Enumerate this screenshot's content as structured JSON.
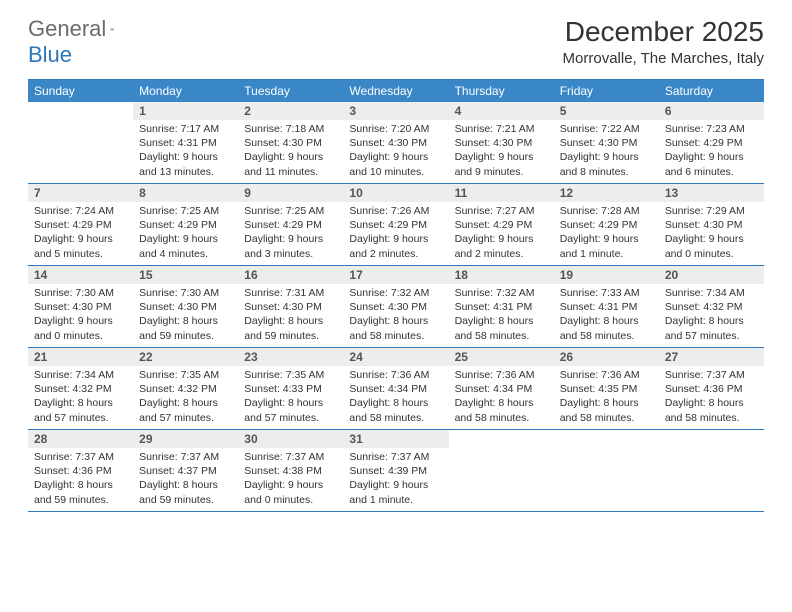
{
  "logo": {
    "general": "General",
    "blue": "Blue"
  },
  "title": "December 2025",
  "location": "Morrovalle, The Marches, Italy",
  "colors": {
    "header_bg": "#3a87c8",
    "header_text": "#ffffff",
    "daynum_bg": "#ededed",
    "daynum_text": "#555555",
    "rule": "#2e77b8",
    "logo_gray": "#6b6b6b",
    "logo_blue": "#2e77b8",
    "body_text": "#333333",
    "background": "#ffffff"
  },
  "fonts": {
    "base_family": "Arial",
    "title_size_pt": 21,
    "location_size_pt": 11,
    "dayname_size_pt": 9,
    "daynum_size_pt": 9,
    "info_size_pt": 8
  },
  "daynames": [
    "Sunday",
    "Monday",
    "Tuesday",
    "Wednesday",
    "Thursday",
    "Friday",
    "Saturday"
  ],
  "startColumn": 1,
  "days": [
    {
      "n": 1,
      "sunrise": "7:17 AM",
      "sunset": "4:31 PM",
      "daylight": "9 hours and 13 minutes."
    },
    {
      "n": 2,
      "sunrise": "7:18 AM",
      "sunset": "4:30 PM",
      "daylight": "9 hours and 11 minutes."
    },
    {
      "n": 3,
      "sunrise": "7:20 AM",
      "sunset": "4:30 PM",
      "daylight": "9 hours and 10 minutes."
    },
    {
      "n": 4,
      "sunrise": "7:21 AM",
      "sunset": "4:30 PM",
      "daylight": "9 hours and 9 minutes."
    },
    {
      "n": 5,
      "sunrise": "7:22 AM",
      "sunset": "4:30 PM",
      "daylight": "9 hours and 8 minutes."
    },
    {
      "n": 6,
      "sunrise": "7:23 AM",
      "sunset": "4:29 PM",
      "daylight": "9 hours and 6 minutes."
    },
    {
      "n": 7,
      "sunrise": "7:24 AM",
      "sunset": "4:29 PM",
      "daylight": "9 hours and 5 minutes."
    },
    {
      "n": 8,
      "sunrise": "7:25 AM",
      "sunset": "4:29 PM",
      "daylight": "9 hours and 4 minutes."
    },
    {
      "n": 9,
      "sunrise": "7:25 AM",
      "sunset": "4:29 PM",
      "daylight": "9 hours and 3 minutes."
    },
    {
      "n": 10,
      "sunrise": "7:26 AM",
      "sunset": "4:29 PM",
      "daylight": "9 hours and 2 minutes."
    },
    {
      "n": 11,
      "sunrise": "7:27 AM",
      "sunset": "4:29 PM",
      "daylight": "9 hours and 2 minutes."
    },
    {
      "n": 12,
      "sunrise": "7:28 AM",
      "sunset": "4:29 PM",
      "daylight": "9 hours and 1 minute."
    },
    {
      "n": 13,
      "sunrise": "7:29 AM",
      "sunset": "4:30 PM",
      "daylight": "9 hours and 0 minutes."
    },
    {
      "n": 14,
      "sunrise": "7:30 AM",
      "sunset": "4:30 PM",
      "daylight": "9 hours and 0 minutes."
    },
    {
      "n": 15,
      "sunrise": "7:30 AM",
      "sunset": "4:30 PM",
      "daylight": "8 hours and 59 minutes."
    },
    {
      "n": 16,
      "sunrise": "7:31 AM",
      "sunset": "4:30 PM",
      "daylight": "8 hours and 59 minutes."
    },
    {
      "n": 17,
      "sunrise": "7:32 AM",
      "sunset": "4:30 PM",
      "daylight": "8 hours and 58 minutes."
    },
    {
      "n": 18,
      "sunrise": "7:32 AM",
      "sunset": "4:31 PM",
      "daylight": "8 hours and 58 minutes."
    },
    {
      "n": 19,
      "sunrise": "7:33 AM",
      "sunset": "4:31 PM",
      "daylight": "8 hours and 58 minutes."
    },
    {
      "n": 20,
      "sunrise": "7:34 AM",
      "sunset": "4:32 PM",
      "daylight": "8 hours and 57 minutes."
    },
    {
      "n": 21,
      "sunrise": "7:34 AM",
      "sunset": "4:32 PM",
      "daylight": "8 hours and 57 minutes."
    },
    {
      "n": 22,
      "sunrise": "7:35 AM",
      "sunset": "4:32 PM",
      "daylight": "8 hours and 57 minutes."
    },
    {
      "n": 23,
      "sunrise": "7:35 AM",
      "sunset": "4:33 PM",
      "daylight": "8 hours and 57 minutes."
    },
    {
      "n": 24,
      "sunrise": "7:36 AM",
      "sunset": "4:34 PM",
      "daylight": "8 hours and 58 minutes."
    },
    {
      "n": 25,
      "sunrise": "7:36 AM",
      "sunset": "4:34 PM",
      "daylight": "8 hours and 58 minutes."
    },
    {
      "n": 26,
      "sunrise": "7:36 AM",
      "sunset": "4:35 PM",
      "daylight": "8 hours and 58 minutes."
    },
    {
      "n": 27,
      "sunrise": "7:37 AM",
      "sunset": "4:36 PM",
      "daylight": "8 hours and 58 minutes."
    },
    {
      "n": 28,
      "sunrise": "7:37 AM",
      "sunset": "4:36 PM",
      "daylight": "8 hours and 59 minutes."
    },
    {
      "n": 29,
      "sunrise": "7:37 AM",
      "sunset": "4:37 PM",
      "daylight": "8 hours and 59 minutes."
    },
    {
      "n": 30,
      "sunrise": "7:37 AM",
      "sunset": "4:38 PM",
      "daylight": "9 hours and 0 minutes."
    },
    {
      "n": 31,
      "sunrise": "7:37 AM",
      "sunset": "4:39 PM",
      "daylight": "9 hours and 1 minute."
    }
  ],
  "labels": {
    "sunrise": "Sunrise:",
    "sunset": "Sunset:",
    "daylight": "Daylight:"
  }
}
